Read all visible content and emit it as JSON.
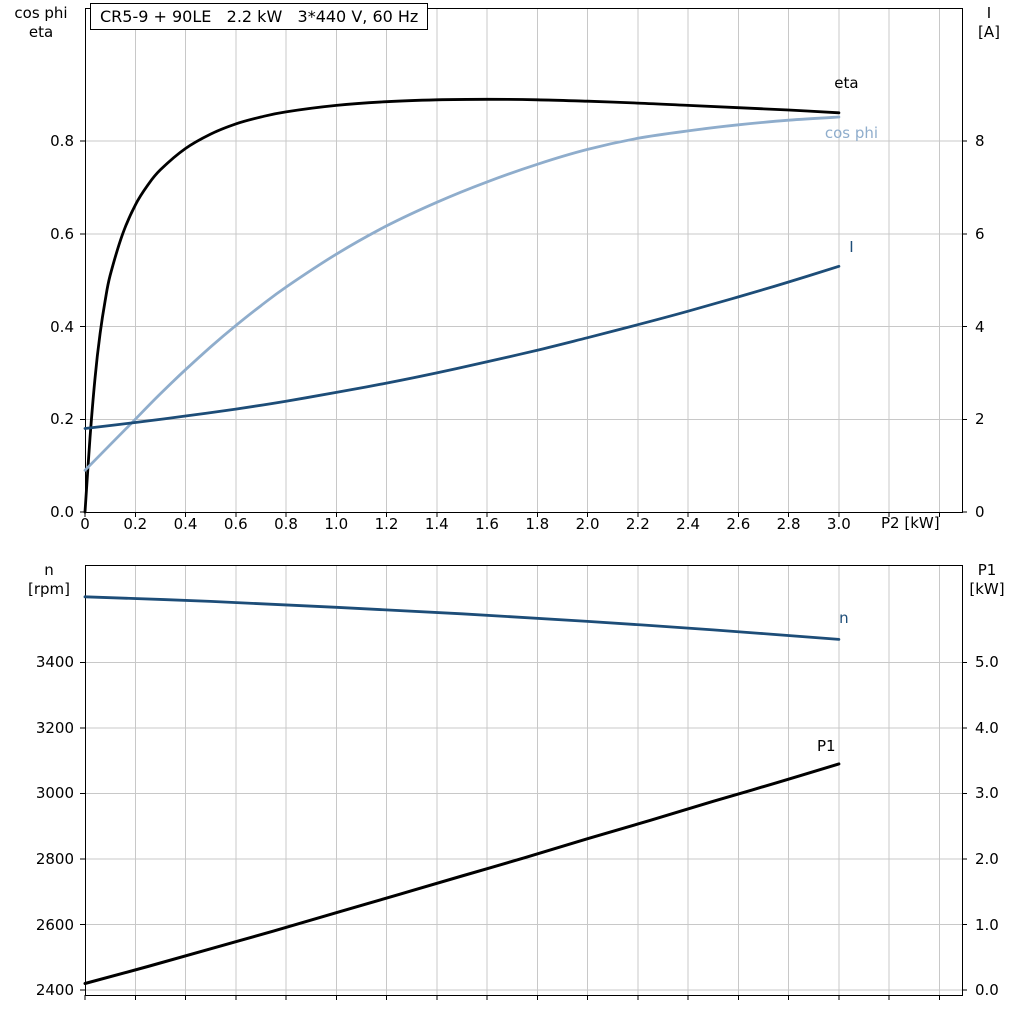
{
  "page": {
    "background": "#ffffff"
  },
  "colors": {
    "grid": "#c8c8c8",
    "axis": "#000000",
    "dark_blue": "#1d4d78",
    "light_blue": "#8fadcc",
    "black": "#000000"
  },
  "chart_data": [
    {
      "type": "line",
      "title": "CR5-9 + 90LE   2.2 kW   3*440 V, 60 Hz",
      "xlabel": "P2 [kW]",
      "x_range": [
        0,
        3.49
      ],
      "grid_x_step": 0.2,
      "grid_color": "#c8c8c8",
      "x_ticks": {
        "values": [
          0,
          0.2,
          0.4,
          0.6,
          0.8,
          1.0,
          1.2,
          1.4,
          1.6,
          1.8,
          2.0,
          2.2,
          2.4,
          2.6,
          2.8,
          3.0
        ],
        "labels": [
          "0",
          "0.2",
          "0.4",
          "0.6",
          "0.8",
          "1.0",
          "1.2",
          "1.4",
          "1.6",
          "1.8",
          "2.0",
          "2.2",
          "2.4",
          "2.6",
          "2.8",
          "3.0"
        ]
      },
      "left_axis": {
        "label_lines": [
          "cos phi",
          "eta"
        ],
        "range": [
          0,
          1.087
        ],
        "ticks": {
          "values": [
            0,
            0.2,
            0.4,
            0.6,
            0.8
          ],
          "labels": [
            "0.0",
            "0.2",
            "0.4",
            "0.6",
            "0.8"
          ]
        }
      },
      "right_axis": {
        "label_lines": [
          "I",
          "[A]"
        ],
        "range": [
          0,
          10.87
        ],
        "ticks": {
          "values": [
            0,
            2,
            4,
            6,
            8
          ],
          "labels": [
            "0",
            "2",
            "4",
            "6",
            "8"
          ]
        }
      },
      "series": [
        {
          "id": "eta",
          "label": "eta",
          "axis": "left",
          "color": "#000000",
          "width": 2.8,
          "label_at": [
            3.03,
            0.925
          ],
          "x": [
            0,
            0.02,
            0.04,
            0.06,
            0.08,
            0.1,
            0.15,
            0.2,
            0.25,
            0.3,
            0.4,
            0.5,
            0.6,
            0.7,
            0.8,
            1.0,
            1.2,
            1.4,
            1.6,
            1.8,
            2.0,
            2.2,
            2.4,
            2.6,
            2.8,
            3.0
          ],
          "y": [
            0,
            0.16,
            0.29,
            0.385,
            0.455,
            0.51,
            0.6,
            0.662,
            0.705,
            0.738,
            0.784,
            0.815,
            0.837,
            0.852,
            0.863,
            0.877,
            0.885,
            0.889,
            0.89,
            0.889,
            0.886,
            0.882,
            0.877,
            0.872,
            0.867,
            0.861
          ]
        },
        {
          "id": "cos-phi",
          "label": "cos phi",
          "axis": "left",
          "color": "#8fadcc",
          "width": 2.8,
          "label_at": [
            3.05,
            0.818
          ],
          "x": [
            0,
            0.1,
            0.2,
            0.3,
            0.4,
            0.5,
            0.6,
            0.7,
            0.8,
            1.0,
            1.2,
            1.4,
            1.6,
            1.8,
            2.0,
            2.2,
            2.4,
            2.6,
            2.8,
            3.0
          ],
          "y": [
            0.09,
            0.145,
            0.2,
            0.255,
            0.307,
            0.356,
            0.402,
            0.445,
            0.485,
            0.556,
            0.617,
            0.668,
            0.712,
            0.75,
            0.782,
            0.806,
            0.822,
            0.835,
            0.845,
            0.852
          ]
        },
        {
          "id": "current",
          "label": "I",
          "axis": "right",
          "color": "#1d4d78",
          "width": 2.8,
          "label_at": [
            3.05,
            5.72
          ],
          "x": [
            0,
            0.2,
            0.4,
            0.6,
            0.8,
            1.0,
            1.2,
            1.4,
            1.6,
            1.8,
            2.0,
            2.2,
            2.4,
            2.6,
            2.8,
            3.0
          ],
          "y": [
            1.8,
            1.93,
            2.07,
            2.22,
            2.39,
            2.58,
            2.78,
            3.0,
            3.24,
            3.49,
            3.76,
            4.04,
            4.33,
            4.64,
            4.96,
            5.3
          ]
        }
      ]
    },
    {
      "type": "line",
      "title": "",
      "xlabel": "",
      "x_range": [
        0,
        3.49
      ],
      "grid_x_step": 0.2,
      "grid_color": "#c8c8c8",
      "x_ticks": {
        "values": [],
        "labels": []
      },
      "left_axis": {
        "label_lines": [
          "n",
          "[rpm]"
        ],
        "range": [
          2385,
          3697
        ],
        "ticks": {
          "values": [
            2400,
            2600,
            2800,
            3000,
            3200,
            3400
          ],
          "labels": [
            "2400",
            "2600",
            "2800",
            "3000",
            "3200",
            "3400"
          ]
        }
      },
      "right_axis": {
        "label_lines": [
          "P1",
          "[kW]"
        ],
        "range": [
          -0.075,
          6.485
        ],
        "ticks": {
          "values": [
            0,
            1,
            2,
            3,
            4,
            5
          ],
          "labels": [
            "0.0",
            "1.0",
            "2.0",
            "3.0",
            "4.0",
            "5.0"
          ]
        }
      },
      "series": [
        {
          "id": "speed",
          "label": "n",
          "axis": "left",
          "color": "#1d4d78",
          "width": 2.8,
          "label_at": [
            3.02,
            3535
          ],
          "x": [
            0,
            0.5,
            1.0,
            1.5,
            2.0,
            2.5,
            3.0
          ],
          "y": [
            3600,
            3586,
            3568,
            3548,
            3525,
            3499,
            3470
          ]
        },
        {
          "id": "p1",
          "label": "P1",
          "axis": "right",
          "color": "#000000",
          "width": 3,
          "label_at": [
            2.95,
            3.72
          ],
          "x": [
            0,
            0.25,
            0.5,
            0.75,
            1.0,
            1.25,
            1.5,
            1.75,
            2.0,
            2.25,
            2.5,
            2.75,
            3.0
          ],
          "y": [
            0.1,
            0.36,
            0.63,
            0.9,
            1.18,
            1.46,
            1.74,
            2.02,
            2.31,
            2.59,
            2.88,
            3.16,
            3.45
          ]
        }
      ]
    }
  ]
}
